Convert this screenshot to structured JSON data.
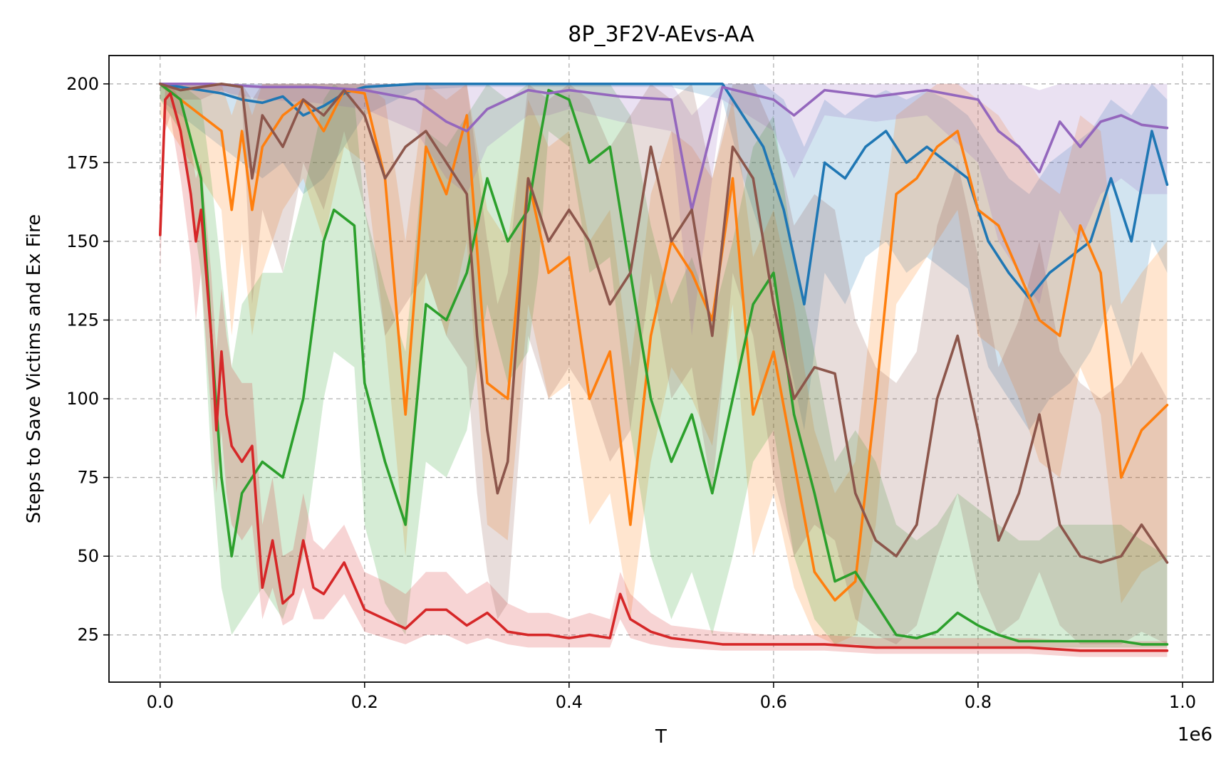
{
  "chart_data": {
    "type": "line",
    "title": "8P_3F2V-AEvs-AA",
    "xlabel": "T",
    "ylabel": "Steps to Save Victims and Ex Fire",
    "x_offset_label": "1e6",
    "xlim": [
      -0.05,
      1.03
    ],
    "ylim": [
      10,
      209
    ],
    "xticks": [
      0.0,
      0.2,
      0.4,
      0.6,
      0.8,
      1.0
    ],
    "xtick_labels": [
      "0.0",
      "0.2",
      "0.4",
      "0.6",
      "0.8",
      "1.0"
    ],
    "yticks": [
      25,
      50,
      75,
      100,
      125,
      150,
      175,
      200
    ],
    "ytick_labels": [
      "25",
      "50",
      "75",
      "100",
      "125",
      "150",
      "175",
      "200"
    ],
    "grid": true,
    "legend": "none",
    "series": [
      {
        "color": "#1f77b4",
        "x": [
          0.0,
          0.02,
          0.04,
          0.06,
          0.08,
          0.1,
          0.12,
          0.14,
          0.16,
          0.18,
          0.2,
          0.25,
          0.3,
          0.35,
          0.4,
          0.45,
          0.5,
          0.55,
          0.57,
          0.59,
          0.61,
          0.63,
          0.65,
          0.67,
          0.69,
          0.71,
          0.73,
          0.75,
          0.77,
          0.79,
          0.81,
          0.83,
          0.85,
          0.87,
          0.89,
          0.91,
          0.93,
          0.95,
          0.97,
          0.985
        ],
        "y": [
          200,
          199,
          198,
          197,
          195,
          194,
          196,
          190,
          193,
          197,
          199,
          200,
          200,
          200,
          200,
          200,
          200,
          200,
          190,
          180,
          160,
          130,
          175,
          170,
          180,
          185,
          175,
          180,
          175,
          170,
          150,
          140,
          132,
          140,
          145,
          150,
          170,
          150,
          185,
          168
        ],
        "upper": [
          200,
          200,
          200,
          200,
          200,
          200,
          200,
          200,
          200,
          200,
          200,
          200,
          200,
          200,
          200,
          200,
          200,
          200,
          200,
          200,
          195,
          180,
          195,
          190,
          195,
          198,
          195,
          198,
          195,
          190,
          180,
          170,
          165,
          175,
          180,
          185,
          195,
          190,
          200,
          195
        ],
        "lower": [
          195,
          190,
          185,
          180,
          175,
          170,
          175,
          165,
          170,
          180,
          190,
          198,
          199,
          199,
          199,
          199,
          199,
          195,
          170,
          150,
          120,
          90,
          140,
          130,
          145,
          150,
          140,
          145,
          140,
          135,
          110,
          100,
          90,
          100,
          105,
          115,
          130,
          110,
          150,
          140
        ]
      },
      {
        "color": "#ff7f0e",
        "x": [
          0.0,
          0.02,
          0.04,
          0.06,
          0.07,
          0.08,
          0.09,
          0.1,
          0.12,
          0.14,
          0.16,
          0.18,
          0.2,
          0.22,
          0.24,
          0.26,
          0.28,
          0.3,
          0.32,
          0.34,
          0.36,
          0.38,
          0.4,
          0.42,
          0.44,
          0.46,
          0.48,
          0.5,
          0.52,
          0.54,
          0.56,
          0.58,
          0.6,
          0.62,
          0.64,
          0.66,
          0.68,
          0.7,
          0.72,
          0.74,
          0.76,
          0.78,
          0.8,
          0.82,
          0.84,
          0.86,
          0.88,
          0.9,
          0.92,
          0.94,
          0.96,
          0.985
        ],
        "y": [
          200,
          195,
          190,
          185,
          160,
          185,
          160,
          180,
          190,
          195,
          185,
          198,
          197,
          170,
          95,
          180,
          165,
          190,
          105,
          100,
          170,
          140,
          145,
          100,
          115,
          60,
          120,
          150,
          140,
          125,
          170,
          95,
          115,
          80,
          45,
          36,
          42,
          100,
          165,
          170,
          180,
          185,
          160,
          155,
          140,
          125,
          120,
          155,
          140,
          75,
          90,
          98
        ],
        "upper": [
          200,
          200,
          200,
          200,
          190,
          200,
          190,
          200,
          200,
          200,
          200,
          200,
          200,
          195,
          150,
          200,
          195,
          200,
          160,
          150,
          195,
          180,
          185,
          150,
          160,
          110,
          165,
          185,
          180,
          170,
          195,
          145,
          160,
          130,
          90,
          70,
          80,
          140,
          190,
          195,
          200,
          200,
          195,
          190,
          180,
          170,
          165,
          190,
          185,
          130,
          140,
          150
        ],
        "lower": [
          190,
          180,
          170,
          160,
          120,
          150,
          120,
          140,
          160,
          170,
          150,
          180,
          175,
          120,
          50,
          140,
          120,
          150,
          60,
          55,
          130,
          100,
          105,
          60,
          70,
          30,
          80,
          110,
          100,
          85,
          130,
          50,
          70,
          40,
          25,
          22,
          25,
          60,
          130,
          140,
          150,
          160,
          120,
          115,
          100,
          80,
          75,
          110,
          95,
          35,
          45,
          50
        ]
      },
      {
        "color": "#2ca02c",
        "x": [
          0.0,
          0.02,
          0.04,
          0.05,
          0.06,
          0.07,
          0.08,
          0.1,
          0.12,
          0.14,
          0.16,
          0.17,
          0.19,
          0.2,
          0.22,
          0.24,
          0.26,
          0.28,
          0.3,
          0.32,
          0.34,
          0.36,
          0.37,
          0.38,
          0.4,
          0.42,
          0.44,
          0.46,
          0.48,
          0.5,
          0.52,
          0.54,
          0.56,
          0.58,
          0.6,
          0.62,
          0.64,
          0.66,
          0.68,
          0.7,
          0.72,
          0.74,
          0.76,
          0.78,
          0.8,
          0.82,
          0.84,
          0.86,
          0.88,
          0.9,
          0.92,
          0.94,
          0.96,
          0.985
        ],
        "y": [
          200,
          195,
          170,
          120,
          75,
          50,
          70,
          80,
          75,
          100,
          150,
          160,
          155,
          105,
          80,
          60,
          130,
          125,
          140,
          170,
          150,
          160,
          180,
          198,
          195,
          175,
          180,
          140,
          100,
          80,
          95,
          70,
          100,
          130,
          140,
          95,
          70,
          42,
          45,
          35,
          25,
          24,
          26,
          32,
          28,
          25,
          23,
          23,
          23,
          23,
          23,
          23,
          22,
          22
        ],
        "upper": [
          200,
          200,
          195,
          170,
          140,
          110,
          130,
          140,
          140,
          165,
          195,
          200,
          195,
          160,
          135,
          115,
          185,
          180,
          190,
          200,
          195,
          200,
          200,
          200,
          200,
          200,
          200,
          190,
          155,
          130,
          145,
          125,
          150,
          180,
          190,
          145,
          115,
          80,
          90,
          80,
          60,
          55,
          60,
          70,
          65,
          60,
          55,
          55,
          60,
          60,
          60,
          60,
          55,
          50
        ],
        "lower": [
          195,
          185,
          140,
          80,
          40,
          25,
          30,
          40,
          30,
          50,
          100,
          115,
          110,
          60,
          35,
          25,
          80,
          75,
          90,
          130,
          105,
          115,
          140,
          185,
          180,
          140,
          145,
          90,
          50,
          30,
          45,
          25,
          50,
          80,
          90,
          50,
          30,
          22,
          22,
          21,
          21,
          21,
          21,
          21,
          21,
          21,
          21,
          21,
          21,
          21,
          21,
          21,
          21,
          21
        ]
      },
      {
        "color": "#d62728",
        "x": [
          0.0,
          0.005,
          0.01,
          0.02,
          0.03,
          0.035,
          0.04,
          0.05,
          0.055,
          0.06,
          0.065,
          0.07,
          0.08,
          0.09,
          0.1,
          0.11,
          0.12,
          0.13,
          0.14,
          0.15,
          0.16,
          0.18,
          0.2,
          0.22,
          0.24,
          0.26,
          0.28,
          0.3,
          0.32,
          0.34,
          0.36,
          0.38,
          0.4,
          0.42,
          0.44,
          0.45,
          0.46,
          0.48,
          0.5,
          0.55,
          0.6,
          0.65,
          0.7,
          0.75,
          0.8,
          0.85,
          0.9,
          0.95,
          0.985
        ],
        "y": [
          152,
          195,
          197,
          185,
          165,
          150,
          160,
          120,
          90,
          115,
          95,
          85,
          80,
          85,
          40,
          55,
          35,
          38,
          55,
          40,
          38,
          48,
          33,
          30,
          27,
          33,
          33,
          28,
          32,
          26,
          25,
          25,
          24,
          25,
          24,
          38,
          30,
          26,
          24,
          22,
          22,
          22,
          21,
          21,
          21,
          21,
          20,
          20,
          20
        ],
        "upper": [
          160,
          198,
          200,
          195,
          180,
          170,
          175,
          140,
          115,
          135,
          120,
          110,
          105,
          105,
          60,
          75,
          50,
          52,
          70,
          55,
          52,
          60,
          45,
          42,
          38,
          45,
          45,
          38,
          42,
          35,
          32,
          32,
          30,
          32,
          30,
          45,
          38,
          32,
          28,
          26,
          25,
          25,
          24,
          24,
          24,
          24,
          23,
          23,
          23
        ],
        "lower": [
          140,
          185,
          190,
          170,
          145,
          125,
          140,
          95,
          70,
          90,
          70,
          60,
          55,
          60,
          30,
          40,
          28,
          30,
          40,
          30,
          30,
          38,
          26,
          24,
          22,
          25,
          25,
          22,
          24,
          22,
          21,
          21,
          21,
          21,
          21,
          30,
          24,
          22,
          21,
          20,
          20,
          20,
          19,
          19,
          19,
          19,
          18,
          18,
          18
        ]
      },
      {
        "color": "#9467bd",
        "x": [
          0.0,
          0.05,
          0.1,
          0.15,
          0.2,
          0.25,
          0.28,
          0.3,
          0.32,
          0.34,
          0.36,
          0.38,
          0.4,
          0.45,
          0.5,
          0.52,
          0.55,
          0.6,
          0.62,
          0.65,
          0.7,
          0.75,
          0.8,
          0.82,
          0.84,
          0.86,
          0.88,
          0.9,
          0.92,
          0.94,
          0.96,
          0.985
        ],
        "y": [
          200,
          200,
          199,
          199,
          198,
          195,
          188,
          185,
          192,
          195,
          198,
          197,
          198,
          196,
          195,
          160,
          199,
          195,
          190,
          198,
          196,
          198,
          195,
          185,
          180,
          172,
          188,
          180,
          188,
          190,
          187,
          186
        ],
        "upper": [
          200,
          200,
          200,
          200,
          200,
          200,
          200,
          200,
          200,
          200,
          200,
          200,
          200,
          200,
          200,
          190,
          200,
          200,
          200,
          200,
          200,
          200,
          200,
          200,
          200,
          198,
          200,
          200,
          200,
          200,
          200,
          200
        ],
        "lower": [
          199,
          198,
          195,
          194,
          192,
          185,
          170,
          165,
          180,
          185,
          190,
          190,
          192,
          188,
          185,
          120,
          195,
          185,
          170,
          190,
          188,
          190,
          175,
          150,
          140,
          130,
          160,
          150,
          165,
          170,
          165,
          165
        ]
      },
      {
        "color": "#8c564b",
        "x": [
          0.0,
          0.02,
          0.04,
          0.06,
          0.08,
          0.09,
          0.1,
          0.12,
          0.14,
          0.16,
          0.18,
          0.2,
          0.22,
          0.24,
          0.26,
          0.28,
          0.3,
          0.31,
          0.32,
          0.33,
          0.34,
          0.36,
          0.38,
          0.4,
          0.42,
          0.44,
          0.46,
          0.48,
          0.5,
          0.52,
          0.54,
          0.56,
          0.58,
          0.6,
          0.62,
          0.64,
          0.66,
          0.68,
          0.7,
          0.72,
          0.74,
          0.76,
          0.78,
          0.8,
          0.82,
          0.84,
          0.86,
          0.88,
          0.9,
          0.92,
          0.94,
          0.96,
          0.985
        ],
        "y": [
          200,
          198,
          199,
          200,
          199,
          170,
          190,
          180,
          195,
          190,
          198,
          190,
          170,
          180,
          185,
          175,
          165,
          120,
          90,
          70,
          80,
          170,
          150,
          160,
          150,
          130,
          140,
          180,
          150,
          160,
          120,
          180,
          170,
          130,
          100,
          110,
          108,
          70,
          55,
          50,
          60,
          100,
          120,
          90,
          55,
          70,
          95,
          60,
          50,
          48,
          50,
          60,
          48
        ],
        "upper": [
          200,
          200,
          200,
          200,
          200,
          195,
          200,
          200,
          200,
          200,
          200,
          200,
          200,
          200,
          200,
          200,
          200,
          175,
          150,
          130,
          140,
          200,
          195,
          200,
          195,
          180,
          190,
          200,
          195,
          200,
          170,
          200,
          200,
          185,
          155,
          165,
          160,
          125,
          110,
          105,
          115,
          155,
          175,
          145,
          110,
          125,
          150,
          115,
          105,
          100,
          105,
          115,
          100
        ],
        "lower": [
          199,
          195,
          195,
          198,
          195,
          130,
          160,
          140,
          175,
          160,
          185,
          160,
          120,
          130,
          140,
          120,
          110,
          70,
          45,
          30,
          35,
          120,
          100,
          110,
          100,
          80,
          90,
          140,
          100,
          110,
          70,
          140,
          120,
          75,
          50,
          60,
          55,
          30,
          25,
          22,
          28,
          50,
          70,
          40,
          25,
          30,
          45,
          28,
          22,
          22,
          22,
          26,
          22
        ]
      }
    ]
  }
}
